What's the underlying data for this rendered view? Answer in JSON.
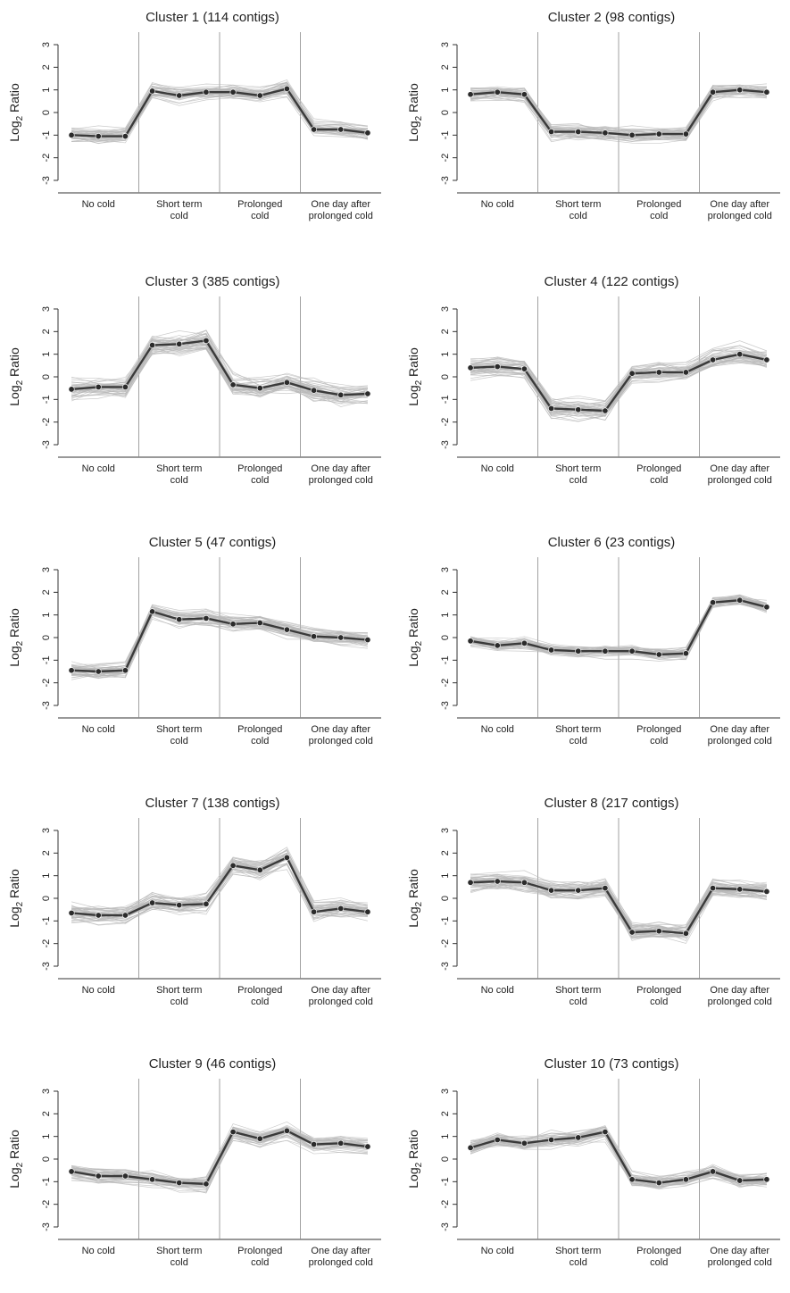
{
  "figure": {
    "background": "#ffffff",
    "colors": {
      "mean_line": "#3a3a3a",
      "mean_marker": "#2b2b2b",
      "member_lines": "#b8b8b8",
      "axis": "#333333",
      "separator": "#8a8a8a"
    }
  },
  "chart_data": [
    {
      "type": "line",
      "title": "Cluster 1 (114 contigs)",
      "ylabel": "Log2 Ratio",
      "ylim": [
        -3,
        3
      ],
      "yticks": [
        "-3",
        "-2",
        "-1",
        "0",
        "1",
        "2",
        "3"
      ],
      "categories": [
        {
          "line1": "No cold",
          "line2": ""
        },
        {
          "line1": "Short term",
          "line2": "cold"
        },
        {
          "line1": "Prolonged",
          "line2": "cold"
        },
        {
          "line1": "One day after",
          "line2": "prolonged cold"
        }
      ],
      "x": [
        1,
        2,
        3,
        4,
        5,
        6,
        7,
        8,
        9,
        10,
        11,
        12
      ],
      "values": [
        -1.0,
        -1.05,
        -1.05,
        0.95,
        0.75,
        0.9,
        0.9,
        0.75,
        1.05,
        -0.75,
        -0.75,
        -0.9
      ],
      "spread": 0.35,
      "grid": false
    },
    {
      "type": "line",
      "title": "Cluster 2 (98 contigs)",
      "ylabel": "Log2 Ratio",
      "ylim": [
        -3,
        3
      ],
      "yticks": [
        "-3",
        "-2",
        "-1",
        "0",
        "1",
        "2",
        "3"
      ],
      "categories": [
        {
          "line1": "No cold",
          "line2": ""
        },
        {
          "line1": "Short term",
          "line2": "cold"
        },
        {
          "line1": "Prolonged",
          "line2": "cold"
        },
        {
          "line1": "One day after",
          "line2": "prolonged cold"
        }
      ],
      "x": [
        1,
        2,
        3,
        4,
        5,
        6,
        7,
        8,
        9,
        10,
        11,
        12
      ],
      "values": [
        0.8,
        0.9,
        0.8,
        -0.85,
        -0.85,
        -0.9,
        -1.0,
        -0.95,
        -0.95,
        0.9,
        1.0,
        0.9
      ],
      "spread": 0.35,
      "grid": false
    },
    {
      "type": "line",
      "title": "Cluster 3 (385 contigs)",
      "ylabel": "Log2 Ratio",
      "ylim": [
        -3,
        3
      ],
      "yticks": [
        "-3",
        "-2",
        "-1",
        "0",
        "1",
        "2",
        "3"
      ],
      "categories": [
        {
          "line1": "No cold",
          "line2": ""
        },
        {
          "line1": "Short term",
          "line2": "cold"
        },
        {
          "line1": "Prolonged",
          "line2": "cold"
        },
        {
          "line1": "One day after",
          "line2": "prolonged cold"
        }
      ],
      "x": [
        1,
        2,
        3,
        4,
        5,
        6,
        7,
        8,
        9,
        10,
        11,
        12
      ],
      "values": [
        -0.55,
        -0.45,
        -0.45,
        1.4,
        1.45,
        1.6,
        -0.35,
        -0.5,
        -0.25,
        -0.6,
        -0.8,
        -0.75
      ],
      "spread": 0.5,
      "grid": false
    },
    {
      "type": "line",
      "title": "Cluster 4 (122 contigs)",
      "ylabel": "Log2 Ratio",
      "ylim": [
        -3,
        3
      ],
      "yticks": [
        "-3",
        "-2",
        "-1",
        "0",
        "1",
        "2",
        "3"
      ],
      "categories": [
        {
          "line1": "No cold",
          "line2": ""
        },
        {
          "line1": "Short term",
          "line2": "cold"
        },
        {
          "line1": "Prolonged",
          "line2": "cold"
        },
        {
          "line1": "One day after",
          "line2": "prolonged cold"
        }
      ],
      "x": [
        1,
        2,
        3,
        4,
        5,
        6,
        7,
        8,
        9,
        10,
        11,
        12
      ],
      "values": [
        0.4,
        0.45,
        0.35,
        -1.4,
        -1.45,
        -1.5,
        0.15,
        0.2,
        0.2,
        0.75,
        1.0,
        0.75
      ],
      "spread": 0.45,
      "grid": false
    },
    {
      "type": "line",
      "title": "Cluster 5 (47 contigs)",
      "ylabel": "Log2 Ratio",
      "ylim": [
        -3,
        3
      ],
      "yticks": [
        "-3",
        "-2",
        "-1",
        "0",
        "1",
        "2",
        "3"
      ],
      "categories": [
        {
          "line1": "No cold",
          "line2": ""
        },
        {
          "line1": "Short term",
          "line2": "cold"
        },
        {
          "line1": "Prolonged",
          "line2": "cold"
        },
        {
          "line1": "One day after",
          "line2": "prolonged cold"
        }
      ],
      "x": [
        1,
        2,
        3,
        4,
        5,
        6,
        7,
        8,
        9,
        10,
        11,
        12
      ],
      "values": [
        -1.45,
        -1.5,
        -1.45,
        1.15,
        0.8,
        0.85,
        0.6,
        0.65,
        0.35,
        0.05,
        0.0,
        -0.1
      ],
      "spread": 0.35,
      "grid": false
    },
    {
      "type": "line",
      "title": "Cluster 6 (23 contigs)",
      "ylabel": "Log2 Ratio",
      "ylim": [
        -3,
        3
      ],
      "yticks": [
        "-3",
        "-2",
        "-1",
        "0",
        "1",
        "2",
        "3"
      ],
      "categories": [
        {
          "line1": "No cold",
          "line2": ""
        },
        {
          "line1": "Short term",
          "line2": "cold"
        },
        {
          "line1": "Prolonged",
          "line2": "cold"
        },
        {
          "line1": "One day after",
          "line2": "prolonged cold"
        }
      ],
      "x": [
        1,
        2,
        3,
        4,
        5,
        6,
        7,
        8,
        9,
        10,
        11,
        12
      ],
      "values": [
        -0.15,
        -0.35,
        -0.25,
        -0.55,
        -0.6,
        -0.6,
        -0.6,
        -0.75,
        -0.7,
        1.55,
        1.65,
        1.35
      ],
      "spread": 0.3,
      "grid": false
    },
    {
      "type": "line",
      "title": "Cluster 7 (138 contigs)",
      "ylabel": "Log2 Ratio",
      "ylim": [
        -3,
        3
      ],
      "yticks": [
        "-3",
        "-2",
        "-1",
        "0",
        "1",
        "2",
        "3"
      ],
      "categories": [
        {
          "line1": "No cold",
          "line2": ""
        },
        {
          "line1": "Short term",
          "line2": "cold"
        },
        {
          "line1": "Prolonged",
          "line2": "cold"
        },
        {
          "line1": "One day after",
          "line2": "prolonged cold"
        }
      ],
      "x": [
        1,
        2,
        3,
        4,
        5,
        6,
        7,
        8,
        9,
        10,
        11,
        12
      ],
      "values": [
        -0.65,
        -0.75,
        -0.75,
        -0.2,
        -0.3,
        -0.25,
        1.45,
        1.25,
        1.8,
        -0.6,
        -0.45,
        -0.6
      ],
      "spread": 0.45,
      "grid": false
    },
    {
      "type": "line",
      "title": "Cluster 8 (217 contigs)",
      "ylabel": "Log2 Ratio",
      "ylim": [
        -3,
        3
      ],
      "yticks": [
        "-3",
        "-2",
        "-1",
        "0",
        "1",
        "2",
        "3"
      ],
      "categories": [
        {
          "line1": "No cold",
          "line2": ""
        },
        {
          "line1": "Short term",
          "line2": "cold"
        },
        {
          "line1": "Prolonged",
          "line2": "cold"
        },
        {
          "line1": "One day after",
          "line2": "prolonged cold"
        }
      ],
      "x": [
        1,
        2,
        3,
        4,
        5,
        6,
        7,
        8,
        9,
        10,
        11,
        12
      ],
      "values": [
        0.7,
        0.75,
        0.7,
        0.35,
        0.35,
        0.45,
        -1.5,
        -1.45,
        -1.55,
        0.45,
        0.4,
        0.3
      ],
      "spread": 0.45,
      "grid": false
    },
    {
      "type": "line",
      "title": "Cluster 9 (46 contigs)",
      "ylabel": "Log2 Ratio",
      "ylim": [
        -3,
        3
      ],
      "yticks": [
        "-3",
        "-2",
        "-1",
        "0",
        "1",
        "2",
        "3"
      ],
      "categories": [
        {
          "line1": "No cold",
          "line2": ""
        },
        {
          "line1": "Short term",
          "line2": "cold"
        },
        {
          "line1": "Prolonged",
          "line2": "cold"
        },
        {
          "line1": "One day after",
          "line2": "prolonged cold"
        }
      ],
      "x": [
        1,
        2,
        3,
        4,
        5,
        6,
        7,
        8,
        9,
        10,
        11,
        12
      ],
      "values": [
        -0.55,
        -0.75,
        -0.75,
        -0.9,
        -1.05,
        -1.1,
        1.2,
        0.9,
        1.25,
        0.65,
        0.7,
        0.55
      ],
      "spread": 0.35,
      "grid": false
    },
    {
      "type": "line",
      "title": "Cluster 10 (73 contigs)",
      "ylabel": "Log2 Ratio",
      "ylim": [
        -3,
        3
      ],
      "yticks": [
        "-3",
        "-2",
        "-1",
        "0",
        "1",
        "2",
        "3"
      ],
      "categories": [
        {
          "line1": "No cold",
          "line2": ""
        },
        {
          "line1": "Short term",
          "line2": "cold"
        },
        {
          "line1": "Prolonged",
          "line2": "cold"
        },
        {
          "line1": "One day after",
          "line2": "prolonged cold"
        }
      ],
      "x": [
        1,
        2,
        3,
        4,
        5,
        6,
        7,
        8,
        9,
        10,
        11,
        12
      ],
      "values": [
        0.5,
        0.85,
        0.7,
        0.85,
        0.95,
        1.2,
        -0.9,
        -1.05,
        -0.9,
        -0.55,
        -0.95,
        -0.9
      ],
      "spread": 0.35,
      "grid": false
    }
  ]
}
